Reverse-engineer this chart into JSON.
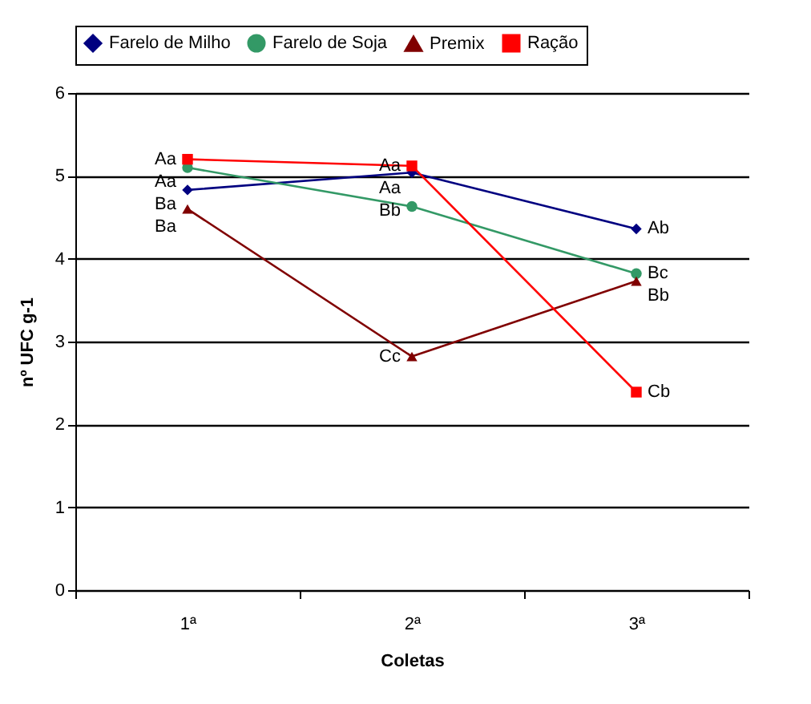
{
  "chart_data": {
    "type": "line",
    "xlabel": "Coletas",
    "ylabel": "nº UFC g-1",
    "categories": [
      "1ª",
      "2ª",
      "3ª"
    ],
    "ylim": [
      0,
      6
    ],
    "yticks": [
      0,
      1,
      2,
      3,
      4,
      5,
      6
    ],
    "grid": "y",
    "legend": "top",
    "series": [
      {
        "name": "Farelo de Milho",
        "color": "#000080",
        "marker": "diamond",
        "values": [
          4.83,
          5.04,
          4.36
        ]
      },
      {
        "name": "Farelo de Soja",
        "color": "#339966",
        "marker": "circle",
        "values": [
          5.1,
          4.63,
          3.82
        ]
      },
      {
        "name": "Premix",
        "color": "#800000",
        "marker": "triangle",
        "values": [
          4.6,
          2.82,
          3.73
        ]
      },
      {
        "name": "Ração",
        "color": "#ff0000",
        "marker": "square",
        "values": [
          5.2,
          5.12,
          2.39
        ]
      }
    ],
    "annotations": [
      {
        "text": "Aa",
        "x": "1ª",
        "y": 5.2
      },
      {
        "text": "Aa",
        "x": "1ª",
        "y": 5.1
      },
      {
        "text": "Ba",
        "x": "1ª",
        "y": 4.83
      },
      {
        "text": "Ba",
        "x": "1ª",
        "y": 4.6
      },
      {
        "text": "Aa",
        "x": "2ª",
        "y": 5.12
      },
      {
        "text": "Aa",
        "x": "2ª",
        "y": 5.04
      },
      {
        "text": "Bb",
        "x": "2ª",
        "y": 4.63
      },
      {
        "text": "Cc",
        "x": "2ª",
        "y": 2.82
      },
      {
        "text": "Ab",
        "x": "3ª",
        "y": 4.36
      },
      {
        "text": "Bc",
        "x": "3ª",
        "y": 3.82
      },
      {
        "text": "Bb",
        "x": "3ª",
        "y": 3.73
      },
      {
        "text": "Cb",
        "x": "3ª",
        "y": 2.39
      }
    ]
  }
}
